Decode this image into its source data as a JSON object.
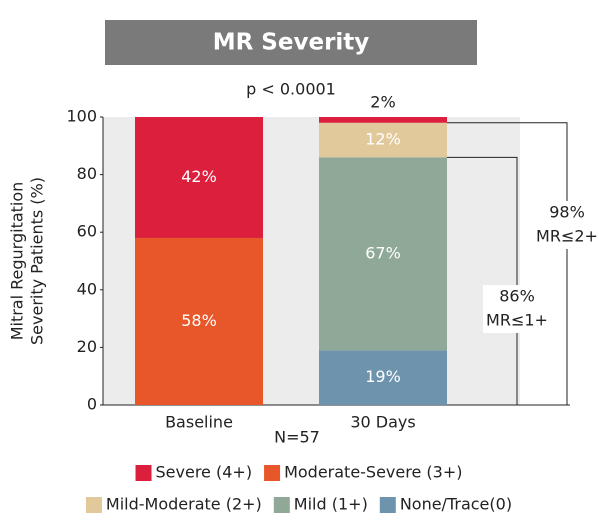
{
  "chart_data": {
    "type": "stacked-bar",
    "title": "MR Severity",
    "subtitle": "p < 0.0001",
    "ylabel": [
      "Mitral Regurgitation",
      "Severity Patients (%)"
    ],
    "xlabel": "N=57",
    "categories": [
      "Baseline",
      "30 Days"
    ],
    "series": [
      {
        "name": "Severe (4+)",
        "color": "#dc1f3c",
        "values": [
          42,
          2
        ],
        "value_labels": [
          "42%",
          "2%"
        ]
      },
      {
        "name": "Moderate-Severe (3+)",
        "color": "#e8572a",
        "values": [
          58,
          0
        ],
        "value_labels": [
          "58%",
          null
        ]
      },
      {
        "name": "Mild-Moderate (2+)",
        "color": "#e2c99c",
        "values": [
          0,
          12
        ],
        "value_labels": [
          null,
          "12%"
        ]
      },
      {
        "name": "Mild (1+)",
        "color": "#8fa898",
        "values": [
          0,
          67
        ],
        "value_labels": [
          null,
          "67%"
        ]
      },
      {
        "name": "None/Trace(0)",
        "color": "#6e94ad",
        "values": [
          0,
          19
        ],
        "value_labels": [
          null,
          "19%"
        ]
      }
    ],
    "annotations": [
      {
        "value": 98,
        "label": "98%",
        "text": "MR≤2+"
      },
      {
        "value": 86,
        "label": "86%",
        "text": "MR≤1+"
      }
    ],
    "ylim": [
      0,
      100
    ],
    "yticks": [
      0,
      20,
      40,
      60,
      80,
      100
    ],
    "legend": "bottom"
  }
}
